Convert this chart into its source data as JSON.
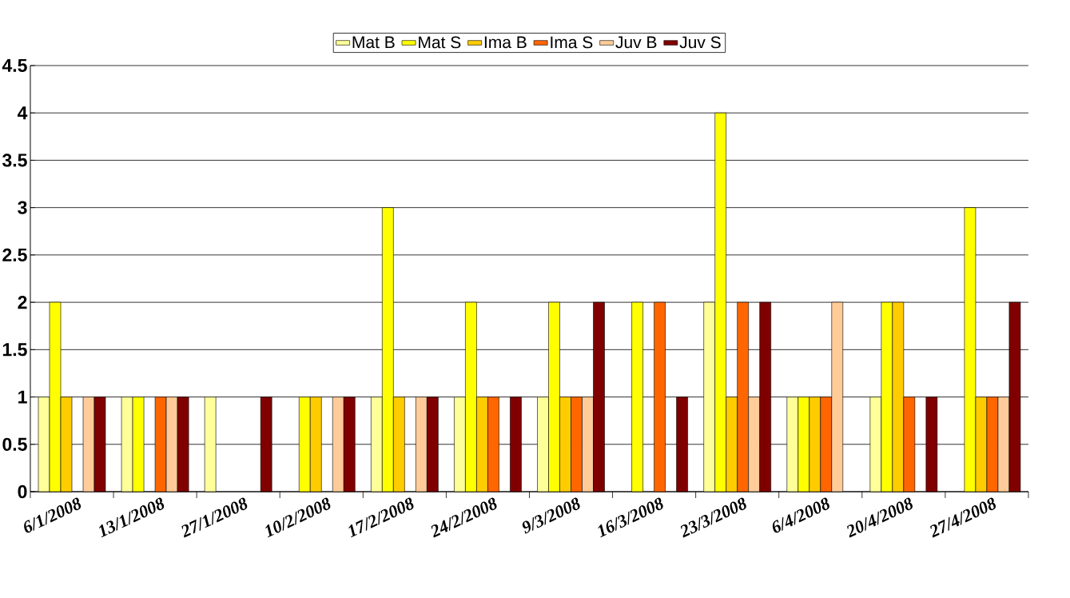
{
  "chart_data": {
    "type": "bar",
    "categories": [
      "6/1/2008",
      "13/1/2008",
      "27/1/2008",
      "10/2/2008",
      "17/2/2008",
      "24/2/2008",
      "9/3/2008",
      "16/3/2008",
      "23/3/2008",
      "6/4/2008",
      "20/4/2008",
      "27/4/2008"
    ],
    "series": [
      {
        "name": "Mat B",
        "color": "#ffff99",
        "values": [
          1,
          1,
          1,
          null,
          1,
          1,
          1,
          null,
          2,
          1,
          1,
          null
        ]
      },
      {
        "name": "Mat S",
        "color": "#ffff00",
        "values": [
          2,
          1,
          null,
          1,
          3,
          2,
          2,
          2,
          4,
          1,
          2,
          3
        ]
      },
      {
        "name": "Ima B",
        "color": "#ffcc00",
        "values": [
          1,
          null,
          null,
          1,
          1,
          1,
          1,
          null,
          1,
          1,
          2,
          1
        ]
      },
      {
        "name": "Ima S",
        "color": "#ff6600",
        "values": [
          null,
          1,
          null,
          null,
          null,
          1,
          1,
          2,
          2,
          1,
          1,
          1
        ]
      },
      {
        "name": "Juv B",
        "color": "#ffcc99",
        "values": [
          1,
          1,
          null,
          1,
          1,
          null,
          1,
          null,
          1,
          2,
          null,
          1
        ]
      },
      {
        "name": "Juv S",
        "color": "#800000",
        "values": [
          1,
          1,
          1,
          1,
          1,
          1,
          2,
          1,
          2,
          null,
          1,
          2
        ]
      }
    ],
    "ylim": [
      0,
      4.5
    ],
    "yticks": [
      0,
      0.5,
      1,
      1.5,
      2,
      2.5,
      3,
      3.5,
      4,
      4.5
    ],
    "grid": "y",
    "legend": "top"
  }
}
